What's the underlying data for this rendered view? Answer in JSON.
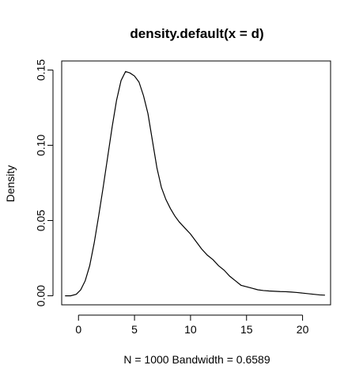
{
  "chart_data": {
    "type": "line",
    "title": "density.default(x = d)",
    "xlabel": "N = 1000   Bandwidth = 0.6589",
    "ylabel": "Density",
    "xlim": [
      -1.5,
      22.5
    ],
    "ylim": [
      -0.006,
      0.156
    ],
    "x_ticks": [
      0,
      5,
      10,
      15,
      20
    ],
    "x_tick_labels": [
      "0",
      "5",
      "10",
      "15",
      "20"
    ],
    "y_ticks": [
      0.0,
      0.05,
      0.1,
      0.15
    ],
    "y_tick_labels": [
      "0.00",
      "0.05",
      "0.10",
      "0.15"
    ],
    "grid": false,
    "legend": false,
    "series": [
      {
        "x": [
          -1.2,
          -0.7,
          -0.2,
          0.2,
          0.6,
          1.0,
          1.4,
          1.8,
          2.2,
          2.6,
          3.0,
          3.4,
          3.8,
          4.2,
          4.6,
          5.0,
          5.4,
          5.8,
          6.2,
          6.6,
          7.0,
          7.4,
          7.8,
          8.2,
          8.6,
          9.0,
          9.5,
          10.0,
          10.5,
          11.0,
          11.5,
          12.0,
          12.5,
          13.0,
          13.5,
          14.0,
          14.5,
          15.0,
          15.5,
          16.0,
          16.5,
          17.0,
          17.5,
          18.0,
          18.5,
          19.0,
          19.5,
          20.0,
          20.5,
          21.0,
          21.5,
          22.0
        ],
        "y": [
          0.0,
          0.0,
          0.001,
          0.004,
          0.01,
          0.02,
          0.035,
          0.053,
          0.072,
          0.092,
          0.112,
          0.13,
          0.143,
          0.149,
          0.148,
          0.146,
          0.142,
          0.133,
          0.121,
          0.103,
          0.085,
          0.072,
          0.064,
          0.058,
          0.053,
          0.049,
          0.045,
          0.041,
          0.036,
          0.031,
          0.027,
          0.024,
          0.02,
          0.017,
          0.013,
          0.01,
          0.007,
          0.006,
          0.005,
          0.004,
          0.0035,
          0.0032,
          0.003,
          0.0028,
          0.0027,
          0.0025,
          0.0022,
          0.0018,
          0.0014,
          0.001,
          0.0006,
          0.0004
        ]
      }
    ]
  }
}
